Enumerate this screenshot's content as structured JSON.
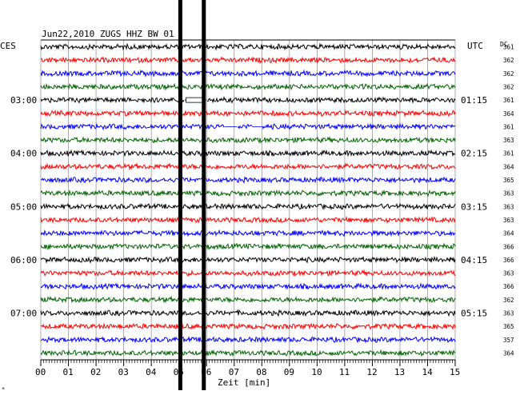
{
  "chart_data": {
    "type": "line",
    "title": "Jun22,2010   ZUGS HHZ BW 01",
    "left_label": "CES",
    "right_label": "UTC",
    "dc_label": "DC",
    "xlabel": "Zeit [min]",
    "xlim": [
      0,
      15
    ],
    "x_ticks": [
      "00",
      "01",
      "02",
      "03",
      "04",
      "05",
      "06",
      "07",
      "08",
      "09",
      "10",
      "11",
      "12",
      "13",
      "14",
      "15"
    ],
    "left_time_labels": [
      {
        "row": 4,
        "text": "03:00"
      },
      {
        "row": 8,
        "text": "04:00"
      },
      {
        "row": 12,
        "text": "05:00"
      },
      {
        "row": 16,
        "text": "06:00"
      },
      {
        "row": 20,
        "text": "07:00"
      }
    ],
    "right_time_labels": [
      {
        "row": 4,
        "text": "01:15"
      },
      {
        "row": 8,
        "text": "02:15"
      },
      {
        "row": 12,
        "text": "03:15"
      },
      {
        "row": 16,
        "text": "04:15"
      },
      {
        "row": 20,
        "text": "05:15"
      }
    ],
    "trace_colors": [
      "#000000",
      "#ff0000",
      "#0000ff",
      "#006400"
    ],
    "dc_values": [
      "361",
      "362",
      "362",
      "362",
      "361",
      "364",
      "361",
      "363",
      "361",
      "364",
      "365",
      "363",
      "363",
      "363",
      "364",
      "366",
      "366",
      "363",
      "366",
      "362",
      "363",
      "365",
      "357",
      "364"
    ],
    "gaps": [
      {
        "row": 4,
        "from": 5.2,
        "to": 6.0
      },
      {
        "row": 6,
        "from": 6.65,
        "to": 7.1
      },
      {
        "row": 6,
        "from": 7.65,
        "to": 8.0
      }
    ],
    "spikes_at_min": [
      5.05,
      5.9
    ],
    "corner_mark": "*"
  }
}
